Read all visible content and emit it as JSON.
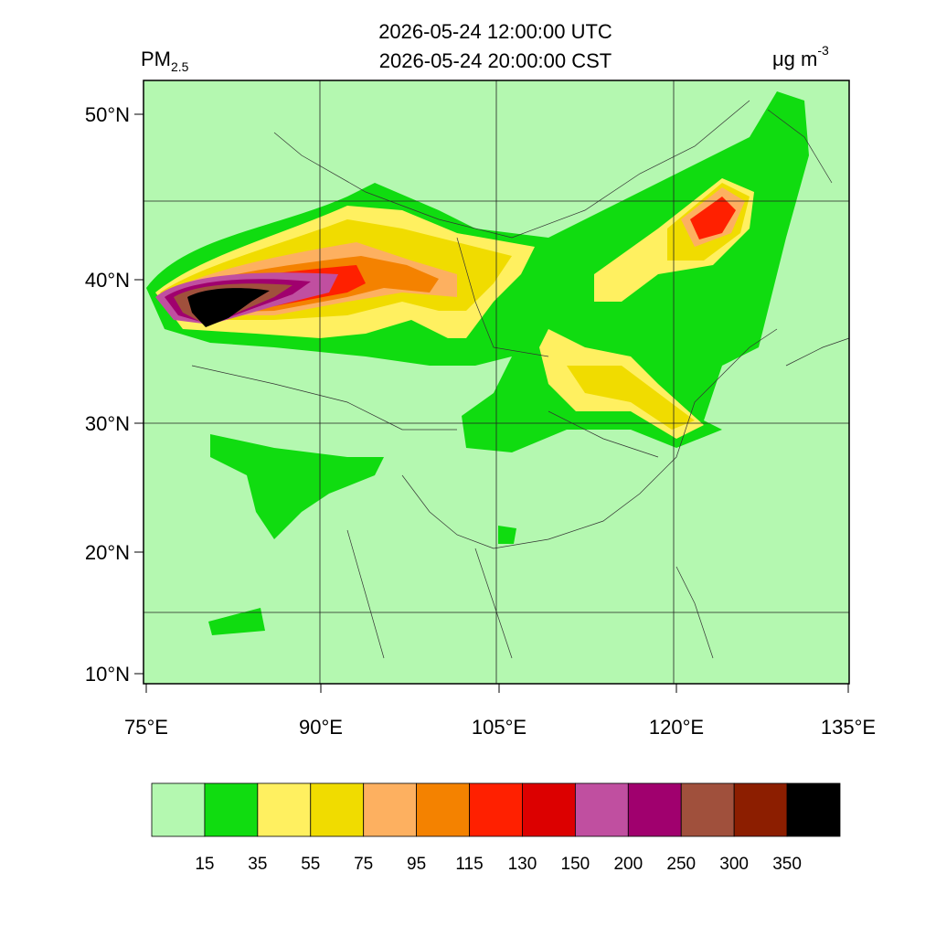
{
  "header": {
    "title_utc": "2026-05-24 12:00:00 UTC",
    "title_local": "2026-05-24 20:00:00 CST",
    "variable": "PM",
    "variable_subscript": "2.5",
    "unit": "μg m",
    "unit_superscript": "-3"
  },
  "map": {
    "lat_labels": [
      "50°N",
      "40°N",
      "30°N",
      "20°N",
      "10°N"
    ],
    "lon_labels": [
      "75°E",
      "90°E",
      "105°E",
      "120°E",
      "135°E"
    ]
  },
  "colorbar": {
    "levels": [
      15,
      35,
      55,
      75,
      95,
      115,
      130,
      150,
      200,
      250,
      300,
      350
    ],
    "colors": [
      "#b4f8b0",
      "#10dc10",
      "#fff060",
      "#f0dc00",
      "#fdb060",
      "#f48200",
      "#ff2000",
      "#dc0000",
      "#c04fa0",
      "#a0006e",
      "#a0503c",
      "#8c1e00",
      "#000000"
    ]
  }
}
